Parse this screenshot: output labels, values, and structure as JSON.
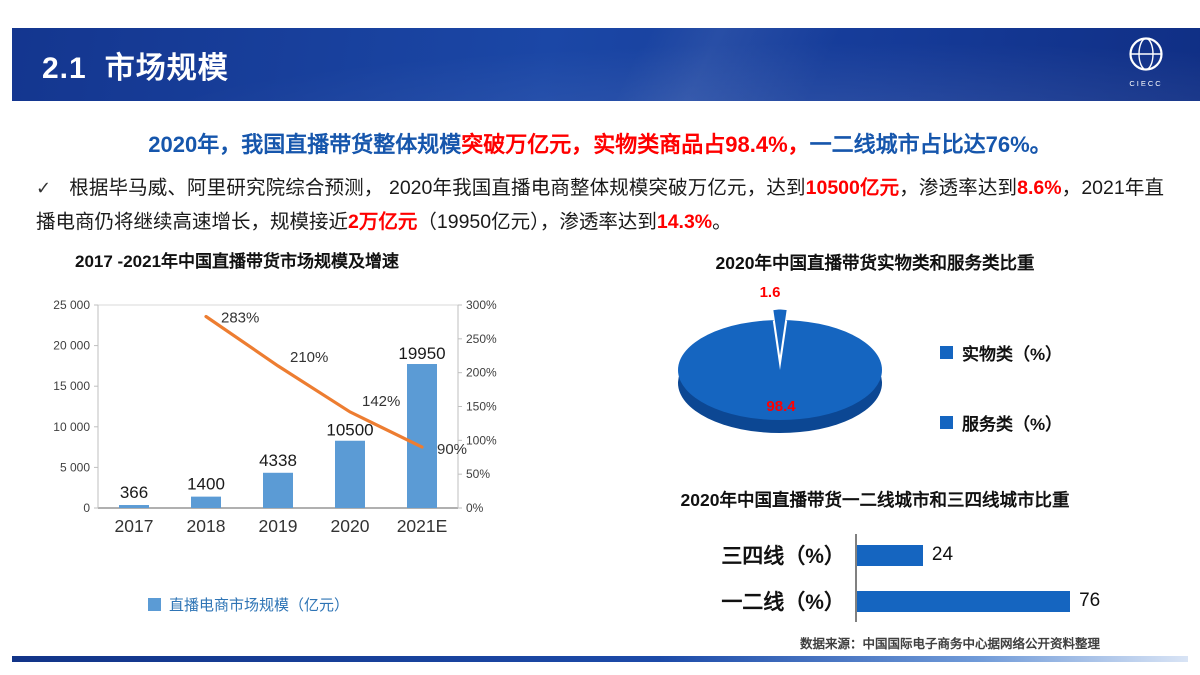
{
  "header": {
    "section_number": "2.1",
    "title": "市场规模",
    "logo_text": "CIECC"
  },
  "headline": {
    "part_blue_1": "2020年，我国直播带货整体规模",
    "part_red": "突破万亿元，实物类商品占98.4%，",
    "part_blue_2": "一二线城市占比达76%。"
  },
  "paragraph": {
    "bullet": "✓",
    "segments": [
      {
        "text": "根据毕马威、阿里研究院综合预测， 2020年我国直播电商整体规模突破万亿元，达到",
        "emphasis": false
      },
      {
        "text": "10500亿元",
        "emphasis": true
      },
      {
        "text": "，渗透率达到",
        "emphasis": false
      },
      {
        "text": "8.6%",
        "emphasis": true
      },
      {
        "text": "，2021年直播电商仍将继续高速增长，规模接近",
        "emphasis": false
      },
      {
        "text": "2万亿元",
        "emphasis": true
      },
      {
        "text": "（19950亿元），渗透率达到",
        "emphasis": false
      },
      {
        "text": "14.3%",
        "emphasis": true
      },
      {
        "text": "。",
        "emphasis": false
      }
    ]
  },
  "chart_data": [
    {
      "type": "bar",
      "title": "2017 -2021年中国直播带货市场规模及增速",
      "categories": [
        "2017",
        "2018",
        "2019",
        "2020",
        "2021E"
      ],
      "series": [
        {
          "name": "直播电商市场规模（亿元）",
          "chart": "bar",
          "values": [
            366,
            1400,
            4338,
            10500,
            19950
          ]
        },
        {
          "name": "增速",
          "chart": "line",
          "unit": "%",
          "values": [
            null,
            283,
            210,
            142,
            90
          ]
        }
      ],
      "y_left": {
        "min": 0,
        "max": 25000,
        "ticks": [
          "25 000",
          "20 000",
          "15 000",
          "10 000",
          "5 000",
          "0"
        ]
      },
      "y_right": {
        "min": 0,
        "max": 300,
        "ticks": [
          "300%",
          "250%",
          "200%",
          "150%",
          "100%",
          "50%",
          "0%"
        ]
      },
      "legend": "bottom"
    },
    {
      "type": "pie",
      "title": "2020年中国直播带货实物类和服务类比重",
      "labels": [
        "实物类（%）",
        "服务类（%）"
      ],
      "values": [
        98.4,
        1.6
      ],
      "legend": "right"
    },
    {
      "type": "bar",
      "orientation": "horizontal",
      "title": "2020年中国直播带货一二线城市和三四线城市比重",
      "categories": [
        "三四线（%）",
        "一二线（%）"
      ],
      "values": [
        24,
        76
      ],
      "xlim": [
        0,
        80
      ]
    }
  ],
  "footer": {
    "source": "数据来源：中国国际电子商务中心据网络公开资料整理"
  },
  "colors": {
    "header_bg": "#16388f",
    "headline_blue": "#1656ac",
    "emphasis_red": "#ff0000",
    "bar_blue": "#5B9BD5",
    "line_orange": "#ED7D31",
    "pie_blue": "#1565c0",
    "pie_depth_blue": "#0c4793",
    "hbar_blue": "#1565c0"
  }
}
